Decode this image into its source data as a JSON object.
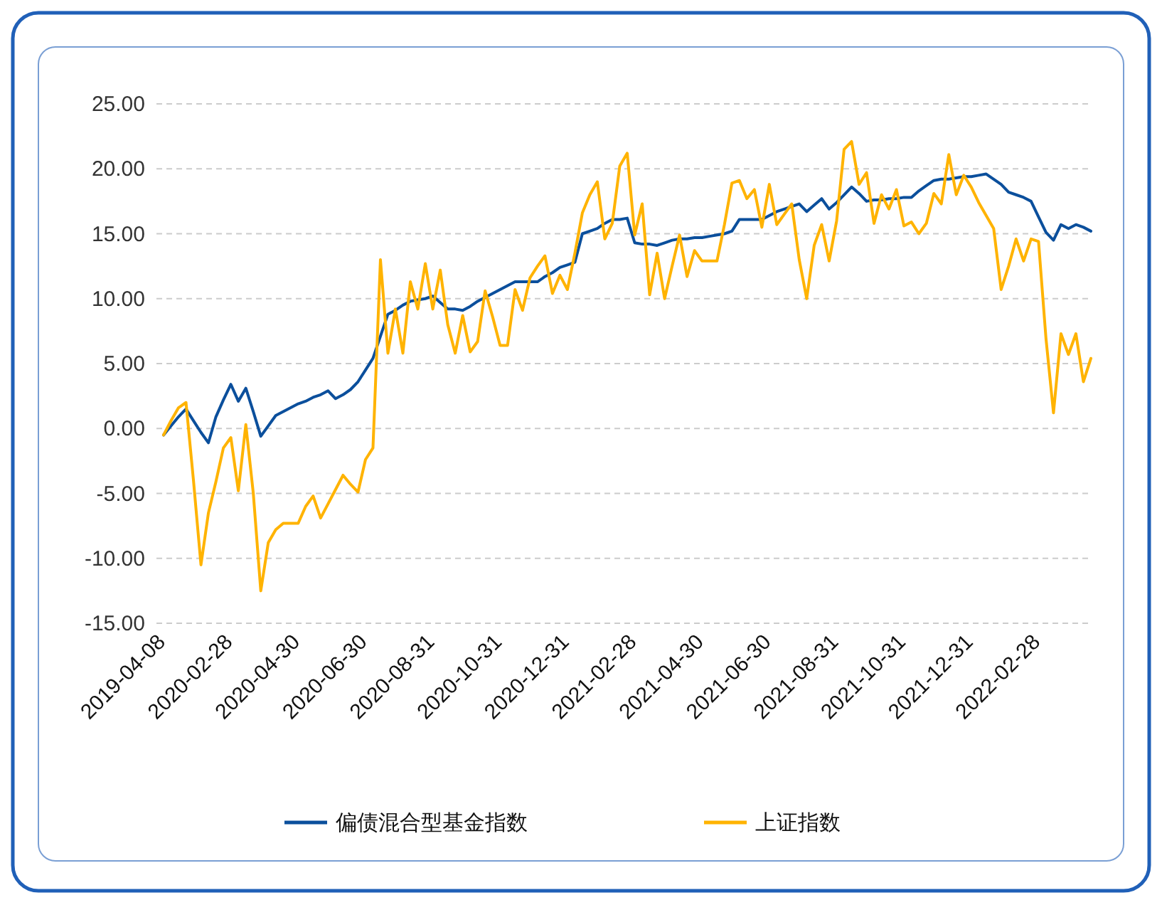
{
  "chart_data": {
    "type": "line",
    "categories": [
      "2019-04-08",
      null,
      null,
      null,
      null,
      null,
      null,
      null,
      null,
      "2020-02-28",
      null,
      null,
      null,
      null,
      null,
      null,
      null,
      null,
      "2020-04-30",
      null,
      null,
      null,
      null,
      null,
      null,
      null,
      null,
      "2020-06-30",
      null,
      null,
      null,
      null,
      null,
      null,
      null,
      null,
      "2020-08-31",
      null,
      null,
      null,
      null,
      null,
      null,
      null,
      null,
      "2020-10-31",
      null,
      null,
      null,
      null,
      null,
      null,
      null,
      null,
      "2020-12-31",
      null,
      null,
      null,
      null,
      null,
      null,
      null,
      null,
      "2021-02-28",
      null,
      null,
      null,
      null,
      null,
      null,
      null,
      null,
      "2021-04-30",
      null,
      null,
      null,
      null,
      null,
      null,
      null,
      null,
      "2021-06-30",
      null,
      null,
      null,
      null,
      null,
      null,
      null,
      null,
      "2021-08-31",
      null,
      null,
      null,
      null,
      null,
      null,
      null,
      null,
      "2021-10-31",
      null,
      null,
      null,
      null,
      null,
      null,
      null,
      null,
      "2021-12-31",
      null,
      null,
      null,
      null,
      null,
      null,
      null,
      null,
      "2022-02-28",
      null,
      null,
      null,
      null,
      null,
      null,
      null
    ],
    "ylim": [
      -15,
      25
    ],
    "yticks": [
      {
        "value": 25,
        "label": "25.00"
      },
      {
        "value": 20,
        "label": "20.00"
      },
      {
        "value": 15,
        "label": "15.00"
      },
      {
        "value": 10,
        "label": "10.00"
      },
      {
        "value": 5,
        "label": "5.00"
      },
      {
        "value": 0,
        "label": "0.00"
      },
      {
        "value": -5,
        "label": "-5.00"
      },
      {
        "value": -10,
        "label": "-10.00"
      },
      {
        "value": -15,
        "label": "-15.00"
      }
    ],
    "grid": "y",
    "legend": "bottom",
    "marker": "none",
    "line_style": "solid",
    "series": [
      {
        "name": "偏债混合型基金指数",
        "color": "#0b4f9c",
        "values": [
          -0.5,
          0.2,
          0.9,
          1.5,
          0.6,
          -0.3,
          -1.1,
          0.9,
          2.2,
          3.4,
          2.1,
          3.1,
          1.3,
          -0.6,
          0.2,
          1.0,
          1.3,
          1.6,
          1.9,
          2.1,
          2.4,
          2.6,
          2.9,
          2.3,
          2.6,
          3.0,
          3.6,
          4.5,
          5.4,
          7.1,
          8.8,
          9.1,
          9.5,
          9.8,
          9.9,
          10.0,
          10.2,
          9.7,
          9.2,
          9.2,
          9.1,
          9.4,
          9.8,
          10.1,
          10.4,
          10.7,
          11.0,
          11.3,
          11.3,
          11.3,
          11.3,
          11.7,
          12.0,
          12.4,
          12.6,
          12.8,
          15.0,
          15.2,
          15.4,
          15.8,
          16.1,
          16.1,
          16.2,
          14.3,
          14.2,
          14.2,
          14.1,
          14.3,
          14.5,
          14.6,
          14.6,
          14.7,
          14.7,
          14.8,
          14.9,
          15.0,
          15.2,
          16.1,
          16.1,
          16.1,
          16.1,
          16.4,
          16.7,
          16.9,
          17.1,
          17.3,
          16.7,
          17.2,
          17.7,
          16.9,
          17.4,
          18.0,
          18.6,
          18.1,
          17.5,
          17.6,
          17.6,
          17.7,
          17.7,
          17.8,
          17.8,
          18.3,
          18.7,
          19.1,
          19.2,
          19.2,
          19.3,
          19.4,
          19.4,
          19.5,
          19.6,
          19.2,
          18.8,
          18.2,
          18.0,
          17.8,
          17.5,
          16.3,
          15.1,
          14.5,
          15.7,
          15.4,
          15.7,
          15.5,
          15.2
        ]
      },
      {
        "name": "上证指数",
        "color": "#ffb300",
        "values": [
          -0.5,
          0.6,
          1.6,
          2.0,
          -4.0,
          -10.5,
          -6.5,
          -4.1,
          -1.5,
          -0.7,
          -4.8,
          0.3,
          -5.0,
          -12.5,
          -8.8,
          -7.8,
          -7.3,
          -7.3,
          -7.3,
          -6.0,
          -5.2,
          -6.9,
          -5.8,
          -4.7,
          -3.6,
          -4.3,
          -4.9,
          -2.4,
          -1.5,
          13.0,
          5.8,
          9.2,
          5.8,
          11.3,
          9.2,
          12.7,
          9.2,
          12.2,
          8.0,
          5.8,
          8.7,
          5.9,
          6.7,
          10.6,
          8.6,
          6.4,
          6.4,
          10.7,
          9.1,
          11.6,
          12.5,
          13.3,
          10.4,
          11.8,
          10.7,
          13.5,
          16.6,
          18.0,
          19.0,
          14.6,
          15.8,
          20.2,
          21.2,
          14.9,
          17.3,
          10.3,
          13.5,
          10.0,
          12.5,
          14.9,
          11.7,
          13.7,
          12.9,
          12.9,
          12.9,
          15.7,
          18.9,
          19.1,
          17.7,
          18.4,
          15.5,
          18.8,
          15.7,
          16.5,
          17.3,
          13.0,
          10.0,
          14.1,
          15.7,
          12.9,
          16.0,
          21.5,
          22.1,
          18.8,
          19.7,
          15.8,
          18.0,
          16.9,
          18.4,
          15.6,
          15.9,
          15.0,
          15.8,
          18.1,
          17.3,
          21.1,
          18.0,
          19.5,
          18.6,
          17.4,
          16.4,
          15.4,
          10.7,
          12.5,
          14.6,
          12.9,
          14.6,
          14.4,
          6.9,
          1.2,
          7.3,
          5.7,
          7.3,
          3.6,
          5.4
        ]
      }
    ]
  }
}
